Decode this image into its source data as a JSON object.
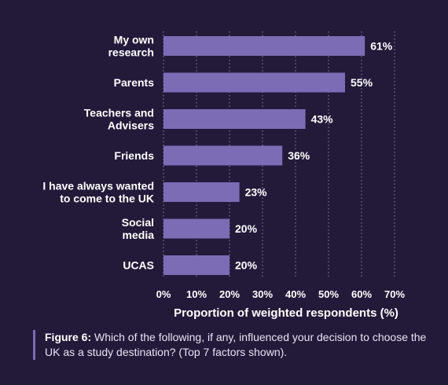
{
  "chart_data": {
    "type": "bar",
    "orientation": "horizontal",
    "categories": [
      [
        "My own",
        "research"
      ],
      [
        "Parents"
      ],
      [
        "Teachers and",
        "Advisers"
      ],
      [
        "Friends"
      ],
      [
        "I have always wanted",
        "to come to the UK"
      ],
      [
        "Social",
        "media"
      ],
      [
        "UCAS"
      ]
    ],
    "values": [
      61,
      55,
      43,
      36,
      23,
      20,
      20
    ],
    "value_labels": [
      "61%",
      "55%",
      "43%",
      "36%",
      "23%",
      "20%",
      "20%"
    ],
    "xticks": [
      0,
      10,
      20,
      30,
      40,
      50,
      60,
      70
    ],
    "xtick_labels": [
      "0%",
      "10%",
      "20%",
      "30%",
      "40%",
      "50%",
      "60%",
      "70%"
    ],
    "xlim": [
      0,
      70
    ],
    "xlabel": "Proportion of weighted respondents (%)",
    "grid": "vertical dotted",
    "bar_color": "#7b6cb5"
  },
  "caption": {
    "label": "Figure 6:",
    "text": " Which of the following, if any, influenced your decision to choose the UK as a study destination? (Top 7 factors shown)."
  }
}
